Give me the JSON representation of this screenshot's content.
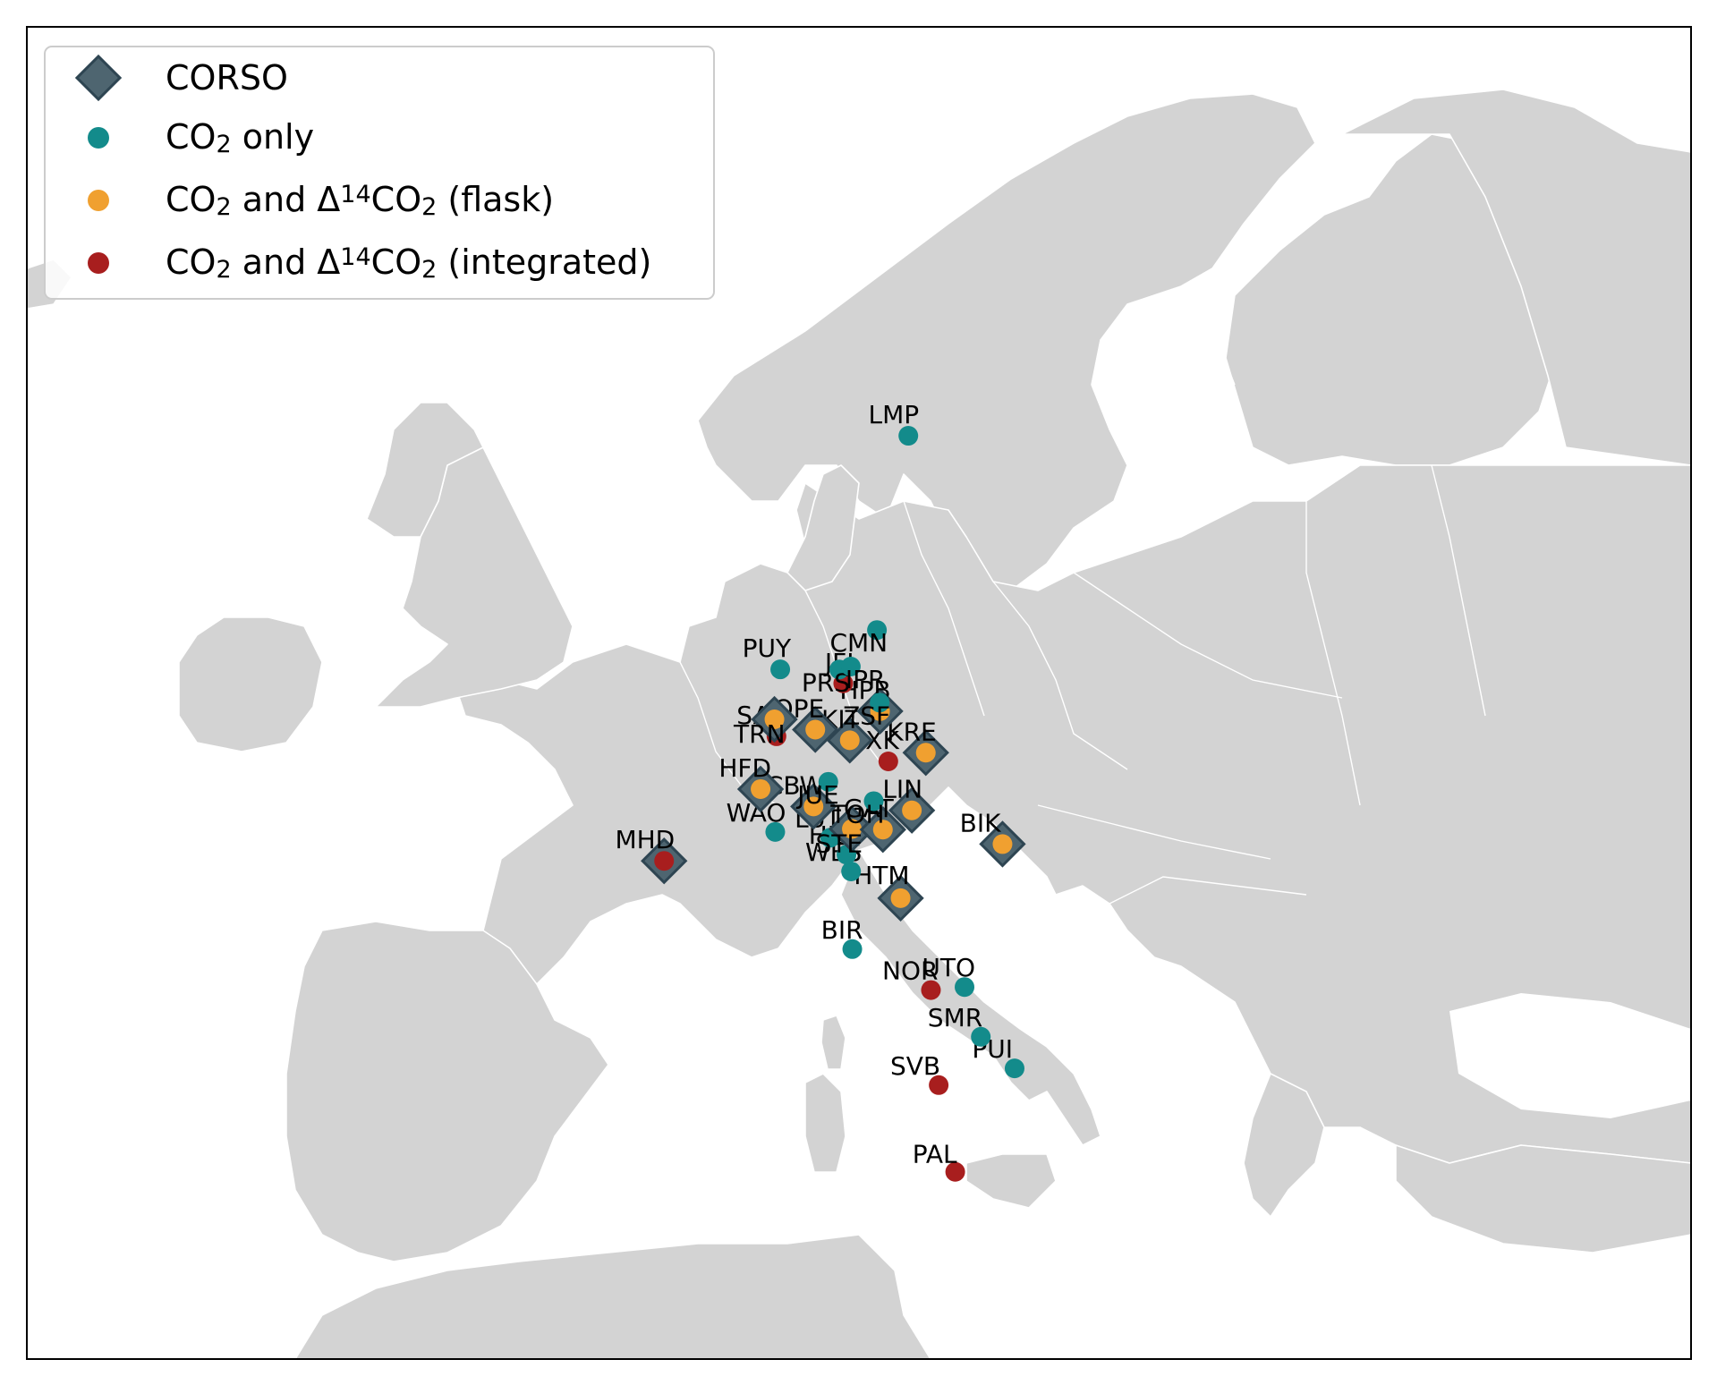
{
  "colors": {
    "land": "#d3d3d3",
    "water": "#ffffff",
    "corso": "#4e6570",
    "corso_edge": "#2e4552",
    "co2_only": "#138b8b",
    "flask": "#f0a030",
    "integrated": "#a81e1e"
  },
  "legend": {
    "corso": "CORSO",
    "co2_only": {
      "main": "CO",
      "sub": "2",
      "rest": " only"
    },
    "flask": {
      "p1": "CO",
      "s1": "2",
      "p2": " and Δ",
      "sup": "14",
      "p3": "CO",
      "s2": "2",
      "p4": " (flask)"
    },
    "integrated": {
      "p1": "CO",
      "s1": "2",
      "p2": " and Δ",
      "sup": "14",
      "p3": "CO",
      "s2": "2",
      "p4": " (integrated)"
    }
  },
  "stations": [
    {
      "code": "PAL",
      "lon": 24.12,
      "lat": 67.97,
      "type": "integrated",
      "corso": false
    },
    {
      "code": "SVB",
      "lon": 19.77,
      "lat": 64.26,
      "type": "integrated",
      "corso": false
    },
    {
      "code": "PUI",
      "lon": 29.38,
      "lat": 62.91,
      "type": "co2_only",
      "corso": false
    },
    {
      "code": "SMR",
      "lon": 24.29,
      "lat": 61.85,
      "type": "co2_only",
      "corso": false
    },
    {
      "code": "NOR",
      "lon": 17.48,
      "lat": 60.09,
      "type": "integrated",
      "corso": false
    },
    {
      "code": "UTO",
      "lon": 21.37,
      "lat": 59.78,
      "type": "co2_only",
      "corso": false
    },
    {
      "code": "BIR",
      "lon": 8.25,
      "lat": 58.39,
      "type": "co2_only",
      "corso": false
    },
    {
      "code": "HTM",
      "lon": 13.42,
      "lat": 56.1,
      "type": "flask",
      "corso": true
    },
    {
      "code": "WES",
      "lon": 8.3,
      "lat": 54.93,
      "type": "co2_only",
      "corso": false
    },
    {
      "code": "HEL",
      "lon": 7.88,
      "lat": 54.18,
      "type": "co2_only",
      "corso": false
    },
    {
      "code": "MHD",
      "lon": -9.9,
      "lat": 53.33,
      "type": "integrated",
      "corso": true
    },
    {
      "code": "LUT",
      "lon": 6.35,
      "lat": 53.4,
      "type": "co2_only",
      "corso": false
    },
    {
      "code": "WAO",
      "lon": 1.12,
      "lat": 52.95,
      "type": "co2_only",
      "corso": false
    },
    {
      "code": "STE",
      "lon": 8.46,
      "lat": 53.04,
      "type": "flask",
      "corso": true
    },
    {
      "code": "GAT",
      "lon": 11.44,
      "lat": 53.07,
      "type": "flask",
      "corso": true
    },
    {
      "code": "BIK",
      "lon": 23.03,
      "lat": 53.23,
      "type": "flask",
      "corso": true
    },
    {
      "code": "CBW",
      "lon": 4.93,
      "lat": 51.97,
      "type": "flask",
      "corso": true
    },
    {
      "code": "LIN",
      "lon": 14.12,
      "lat": 52.17,
      "type": "flask",
      "corso": true
    },
    {
      "code": "TOH",
      "lon": 10.54,
      "lat": 51.81,
      "type": "co2_only",
      "corso": false
    },
    {
      "code": "HFD",
      "lon": 0.23,
      "lat": 50.98,
      "type": "flask",
      "corso": true
    },
    {
      "code": "JUE",
      "lon": 6.41,
      "lat": 50.91,
      "type": "co2_only",
      "corso": false
    },
    {
      "code": "OXK",
      "lon": 11.81,
      "lat": 50.03,
      "type": "integrated",
      "corso": false
    },
    {
      "code": "KRE",
      "lon": 15.08,
      "lat": 49.57,
      "type": "flask",
      "corso": true
    },
    {
      "code": "KIT",
      "lon": 8.43,
      "lat": 49.09,
      "type": "flask",
      "corso": true
    },
    {
      "code": "OPE",
      "lon": 5.5,
      "lat": 48.56,
      "type": "flask",
      "corso": true
    },
    {
      "code": "SAC",
      "lon": 2.14,
      "lat": 48.72,
      "type": "integrated",
      "corso": false
    },
    {
      "code": "TRN",
      "lon": 2.11,
      "lat": 47.96,
      "type": "flask",
      "corso": true
    },
    {
      "code": "HPB",
      "lon": 11.02,
      "lat": 47.8,
      "type": "flask",
      "corso": true
    },
    {
      "code": "ZSF",
      "lon": 10.98,
      "lat": 47.42,
      "type": "co2_only",
      "corso": false
    },
    {
      "code": "JFJ",
      "lon": 7.99,
      "lat": 46.55,
      "type": "integrated",
      "corso": false
    },
    {
      "code": "PRS",
      "lon": 7.7,
      "lat": 45.93,
      "type": "co2_only",
      "corso": false
    },
    {
      "code": "IPR",
      "lon": 8.63,
      "lat": 45.81,
      "type": "co2_only",
      "corso": false
    },
    {
      "code": "PUY",
      "lon": 2.97,
      "lat": 45.77,
      "type": "co2_only",
      "corso": false
    },
    {
      "code": "CMN",
      "lon": 10.7,
      "lat": 44.19,
      "type": "co2_only",
      "corso": false
    },
    {
      "code": "LMP",
      "lon": 12.63,
      "lat": 35.51,
      "type": "co2_only",
      "corso": false
    }
  ]
}
